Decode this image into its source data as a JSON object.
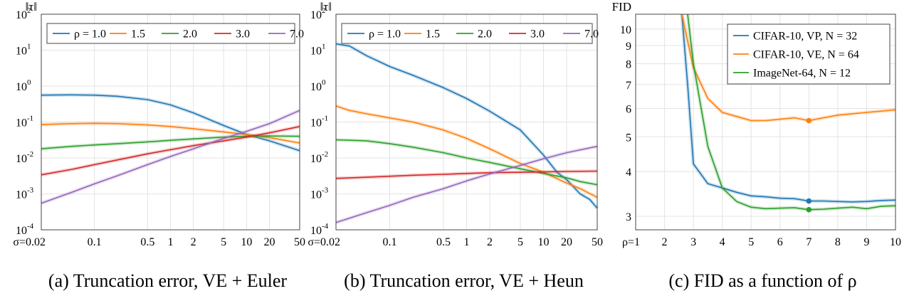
{
  "colors": {
    "blue": "#1f77b4",
    "orange": "#ff7f0e",
    "green": "#2ca02c",
    "red": "#d62728",
    "purple": "#9467bd",
    "grid": "#e3e3e3"
  },
  "chart_data": [
    {
      "type": "line",
      "caption": "(a) Truncation error, VE + Euler",
      "ylabel": "‖τ‖",
      "xscale": "log",
      "yscale": "log",
      "xlim": [
        0.02,
        50
      ],
      "ylim": [
        0.0001,
        100
      ],
      "xticks": [
        {
          "v": 0.02,
          "t": "σ=0.02"
        },
        {
          "v": 0.1,
          "t": "0.1"
        },
        {
          "v": 0.5,
          "t": "0.5"
        },
        {
          "v": 1,
          "t": "1"
        },
        {
          "v": 2,
          "t": "2"
        },
        {
          "v": 5,
          "t": "5"
        },
        {
          "v": 10,
          "t": "10"
        },
        {
          "v": 20,
          "t": "20"
        },
        {
          "v": 50,
          "t": "50"
        }
      ],
      "yticks": [
        {
          "v": 0.0001,
          "b": "10",
          "e": "-4"
        },
        {
          "v": 0.001,
          "b": "10",
          "e": "-3"
        },
        {
          "v": 0.01,
          "b": "10",
          "e": "-2"
        },
        {
          "v": 0.1,
          "b": "10",
          "e": "-1"
        },
        {
          "v": 1,
          "b": "10",
          "e": "0"
        },
        {
          "v": 10,
          "b": "10",
          "e": "1"
        },
        {
          "v": 100,
          "b": "10",
          "e": "2"
        }
      ],
      "legend_position": "top",
      "series": [
        {
          "name": "ρ = 1.0",
          "color": "blue",
          "x": [
            0.02,
            0.05,
            0.1,
            0.2,
            0.5,
            1,
            2,
            5,
            10,
            20,
            50
          ],
          "y": [
            0.56,
            0.57,
            0.56,
            0.52,
            0.42,
            0.3,
            0.18,
            0.08,
            0.045,
            0.03,
            0.016
          ]
        },
        {
          "name": "1.5",
          "color": "orange",
          "x": [
            0.02,
            0.05,
            0.1,
            0.2,
            0.5,
            1,
            2,
            5,
            10,
            20,
            50
          ],
          "y": [
            0.085,
            0.09,
            0.092,
            0.09,
            0.083,
            0.075,
            0.065,
            0.053,
            0.045,
            0.037,
            0.026
          ]
        },
        {
          "name": "2.0",
          "color": "green",
          "x": [
            0.02,
            0.05,
            0.1,
            0.2,
            0.5,
            1,
            2,
            5,
            10,
            20,
            50
          ],
          "y": [
            0.018,
            0.021,
            0.023,
            0.025,
            0.028,
            0.031,
            0.034,
            0.038,
            0.04,
            0.041,
            0.04
          ]
        },
        {
          "name": "3.0",
          "color": "red",
          "x": [
            0.02,
            0.05,
            0.1,
            0.2,
            0.5,
            1,
            2,
            5,
            10,
            20,
            50
          ],
          "y": [
            0.0034,
            0.0048,
            0.0065,
            0.0088,
            0.013,
            0.017,
            0.022,
            0.03,
            0.038,
            0.05,
            0.075
          ]
        },
        {
          "name": "7.0",
          "color": "purple",
          "x": [
            0.02,
            0.05,
            0.1,
            0.2,
            0.5,
            1,
            2,
            5,
            10,
            20,
            50
          ],
          "y": [
            0.00055,
            0.0011,
            0.0019,
            0.0032,
            0.0065,
            0.011,
            0.018,
            0.035,
            0.055,
            0.09,
            0.21
          ]
        }
      ]
    },
    {
      "type": "line",
      "caption": "(b) Truncation error, VE + Heun",
      "ylabel": "‖τ‖",
      "xscale": "log",
      "yscale": "log",
      "xlim": [
        0.02,
        50
      ],
      "ylim": [
        0.0001,
        100
      ],
      "xticks": [
        {
          "v": 0.02,
          "t": "σ=0.02"
        },
        {
          "v": 0.1,
          "t": "0.1"
        },
        {
          "v": 0.5,
          "t": "0.5"
        },
        {
          "v": 1,
          "t": "1"
        },
        {
          "v": 2,
          "t": "2"
        },
        {
          "v": 5,
          "t": "5"
        },
        {
          "v": 10,
          "t": "10"
        },
        {
          "v": 20,
          "t": "20"
        },
        {
          "v": 50,
          "t": "50"
        }
      ],
      "yticks": [
        {
          "v": 0.0001,
          "b": "10",
          "e": "-4"
        },
        {
          "v": 0.001,
          "b": "10",
          "e": "-3"
        },
        {
          "v": 0.01,
          "b": "10",
          "e": "-2"
        },
        {
          "v": 0.1,
          "b": "10",
          "e": "-1"
        },
        {
          "v": 1,
          "b": "10",
          "e": "0"
        },
        {
          "v": 10,
          "b": "10",
          "e": "1"
        },
        {
          "v": 100,
          "b": "10",
          "e": "2"
        }
      ],
      "legend_position": "top",
      "series": [
        {
          "name": "ρ = 1.0",
          "color": "blue",
          "x": [
            0.02,
            0.03,
            0.05,
            0.1,
            0.2,
            0.5,
            1,
            2,
            5,
            10,
            15,
            20,
            30,
            40,
            50
          ],
          "y": [
            15,
            13,
            7,
            3.5,
            2,
            0.9,
            0.45,
            0.2,
            0.06,
            0.012,
            0.004,
            0.0025,
            0.001,
            0.0007,
            0.0004
          ]
        },
        {
          "name": "1.5",
          "color": "orange",
          "x": [
            0.02,
            0.03,
            0.05,
            0.1,
            0.2,
            0.5,
            1,
            2,
            5,
            10,
            20,
            30,
            50
          ],
          "y": [
            0.28,
            0.21,
            0.17,
            0.13,
            0.1,
            0.06,
            0.035,
            0.018,
            0.007,
            0.004,
            0.002,
            0.0014,
            0.0008
          ]
        },
        {
          "name": "2.0",
          "color": "green",
          "x": [
            0.02,
            0.05,
            0.1,
            0.2,
            0.5,
            1,
            2,
            5,
            10,
            20,
            30,
            50
          ],
          "y": [
            0.032,
            0.03,
            0.025,
            0.02,
            0.014,
            0.01,
            0.0075,
            0.005,
            0.0037,
            0.0028,
            0.0022,
            0.0018
          ]
        },
        {
          "name": "3.0",
          "color": "red",
          "x": [
            0.02,
            0.05,
            0.1,
            0.2,
            0.5,
            1,
            2,
            5,
            10,
            20,
            50
          ],
          "y": [
            0.0027,
            0.0029,
            0.0031,
            0.0033,
            0.0035,
            0.0037,
            0.0039,
            0.004,
            0.0041,
            0.0042,
            0.0043
          ]
        },
        {
          "name": "7.0",
          "color": "purple",
          "x": [
            0.02,
            0.05,
            0.1,
            0.2,
            0.5,
            1,
            2,
            5,
            10,
            20,
            50
          ],
          "y": [
            0.00016,
            0.0003,
            0.00048,
            0.0008,
            0.0014,
            0.0023,
            0.0036,
            0.0062,
            0.0095,
            0.014,
            0.021
          ]
        }
      ]
    },
    {
      "type": "line",
      "caption": "(c) FID as a function of ρ",
      "ylabel": "FID",
      "xscale": "linear",
      "yscale": "log",
      "xlim": [
        1,
        10
      ],
      "ylim": [
        2.75,
        11
      ],
      "xticks": [
        {
          "v": 1,
          "t": "ρ=1"
        },
        {
          "v": 2,
          "t": "2"
        },
        {
          "v": 3,
          "t": "3"
        },
        {
          "v": 4,
          "t": "4"
        },
        {
          "v": 5,
          "t": "5"
        },
        {
          "v": 6,
          "t": "6"
        },
        {
          "v": 7,
          "t": "7"
        },
        {
          "v": 8,
          "t": "8"
        },
        {
          "v": 9,
          "t": "9"
        },
        {
          "v": 10,
          "t": "10"
        }
      ],
      "yticks": [
        {
          "v": 3,
          "t": "3"
        },
        {
          "v": 4,
          "t": "4"
        },
        {
          "v": 5,
          "t": "5"
        },
        {
          "v": 6,
          "t": "6"
        },
        {
          "v": 7,
          "t": "7"
        },
        {
          "v": 8,
          "t": "8"
        },
        {
          "v": 9,
          "t": "9"
        },
        {
          "v": 10,
          "t": "10"
        }
      ],
      "legend_position": "top-right",
      "series": [
        {
          "name": "CIFAR-10, VP, N = 32",
          "color": "blue",
          "x": [
            2.6,
            2.8,
            3,
            3.5,
            4,
            4.5,
            5,
            5.5,
            6,
            6.5,
            7,
            7.5,
            8,
            8.5,
            9,
            9.5,
            10
          ],
          "y": [
            12,
            7,
            4.2,
            3.7,
            3.6,
            3.5,
            3.42,
            3.4,
            3.37,
            3.36,
            3.31,
            3.31,
            3.3,
            3.29,
            3.3,
            3.32,
            3.33
          ],
          "marker_x": 7,
          "marker_y": 3.31
        },
        {
          "name": "CIFAR-10, VE, N = 64",
          "color": "orange",
          "x": [
            2.6,
            3,
            3.5,
            4,
            4.5,
            5,
            5.5,
            6,
            6.5,
            7,
            7.5,
            8,
            8.5,
            9,
            9.5,
            10
          ],
          "y": [
            12,
            7.8,
            6.4,
            5.85,
            5.7,
            5.55,
            5.55,
            5.6,
            5.65,
            5.55,
            5.65,
            5.75,
            5.8,
            5.85,
            5.9,
            5.95
          ],
          "marker_x": 7,
          "marker_y": 5.55
        },
        {
          "name": "ImageNet-64, N = 12",
          "color": "green",
          "x": [
            2.8,
            3,
            3.5,
            4,
            4.5,
            5,
            5.5,
            6,
            6.5,
            7,
            7.5,
            8,
            8.5,
            9,
            9.5,
            10
          ],
          "y": [
            12,
            8,
            4.7,
            3.6,
            3.3,
            3.18,
            3.15,
            3.16,
            3.17,
            3.13,
            3.14,
            3.16,
            3.18,
            3.15,
            3.2,
            3.21
          ],
          "marker_x": 7,
          "marker_y": 3.13
        }
      ]
    }
  ]
}
